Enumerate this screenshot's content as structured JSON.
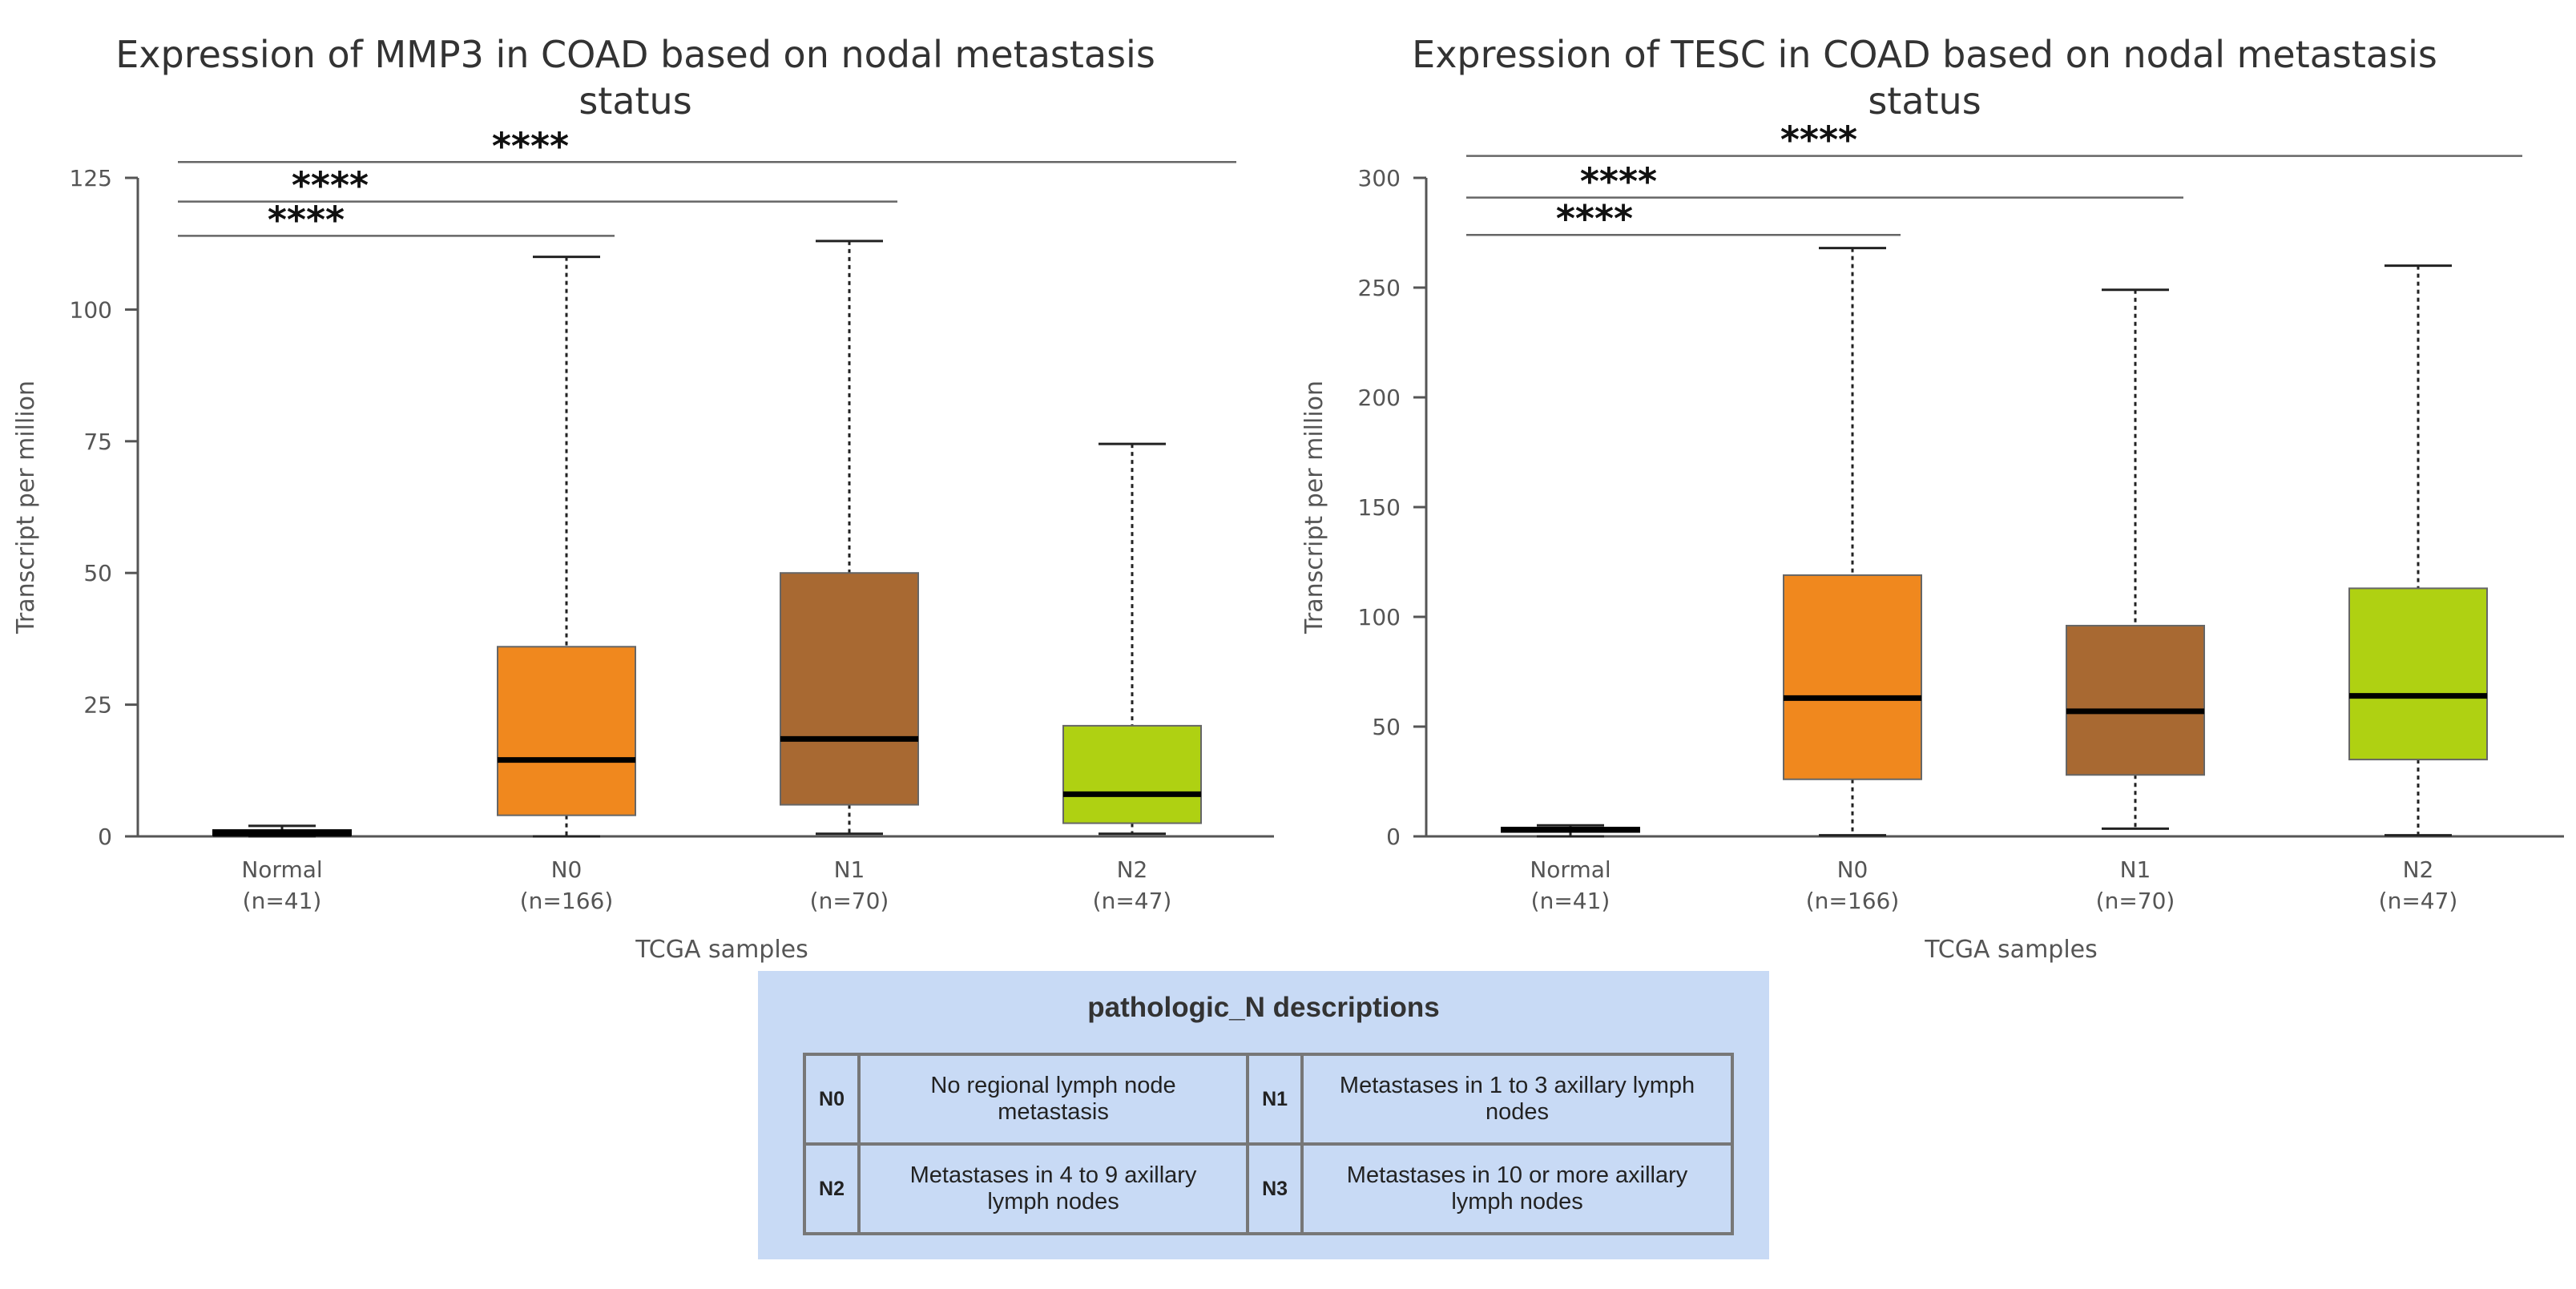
{
  "chart_data": [
    {
      "type": "box",
      "title": "Expression of MMP3 in COAD based on nodal metastasis status",
      "title_lines": [
        "Expression of MMP3 in COAD based on nodal metastasis",
        "status"
      ],
      "xlabel": "TCGA samples",
      "ylabel": "Transcript per million",
      "ylim": [
        0,
        125
      ],
      "yticks": [
        "0",
        "25",
        "50",
        "75",
        "100",
        "125"
      ],
      "ytick_values": [
        0,
        25,
        50,
        75,
        100,
        125
      ],
      "categories": [
        {
          "name": "Normal",
          "n": "(n=41)",
          "min": 0.0,
          "q1": 0.2,
          "median": 0.5,
          "q3": 1.2,
          "max": 2.0,
          "color": "#000000"
        },
        {
          "name": "N0",
          "n": "(n=166)",
          "min": 0.0,
          "q1": 4.0,
          "median": 14.5,
          "q3": 36.0,
          "max": 110.0,
          "color": "#f0881e"
        },
        {
          "name": "N1",
          "n": "(n=70)",
          "min": 0.5,
          "q1": 6.0,
          "median": 18.5,
          "q3": 50.0,
          "max": 113.0,
          "color": "#a86932"
        },
        {
          "name": "N2",
          "n": "(n=47)",
          "min": 0.5,
          "q1": 2.5,
          "median": 8.0,
          "q3": 21.0,
          "max": 74.5,
          "color": "#afd112"
        }
      ],
      "significance": [
        {
          "from": 0,
          "to": 1,
          "label": "****",
          "y": 114
        },
        {
          "from": 0,
          "to": 2,
          "label": "****",
          "y": 120.5
        },
        {
          "from": 0,
          "to": 3,
          "label": "****",
          "y": 128
        }
      ]
    },
    {
      "type": "box",
      "title": "Expression of TESC in COAD based on nodal metastasis status",
      "title_lines": [
        "Expression of TESC in COAD based on nodal metastasis",
        "status"
      ],
      "xlabel": "TCGA samples",
      "ylabel": "Transcript per million",
      "ylim": [
        0,
        300
      ],
      "yticks": [
        "0",
        "50",
        "100",
        "150",
        "200",
        "250",
        "300"
      ],
      "ytick_values": [
        0,
        50,
        100,
        150,
        200,
        250,
        300
      ],
      "categories": [
        {
          "name": "Normal",
          "n": "(n=41)",
          "min": 0.0,
          "q1": 2.0,
          "median": 3.0,
          "q3": 4.0,
          "max": 5.0,
          "color": "#000000"
        },
        {
          "name": "N0",
          "n": "(n=166)",
          "min": 0.5,
          "q1": 26.0,
          "median": 63.0,
          "q3": 119.0,
          "max": 268.0,
          "color": "#f0881e"
        },
        {
          "name": "N1",
          "n": "(n=70)",
          "min": 3.5,
          "q1": 28.0,
          "median": 57.0,
          "q3": 96.0,
          "max": 249.0,
          "color": "#a86932"
        },
        {
          "name": "N2",
          "n": "(n=47)",
          "min": 0.5,
          "q1": 35.0,
          "median": 64.0,
          "q3": 113.0,
          "max": 260.0,
          "color": "#afd112"
        }
      ],
      "significance": [
        {
          "from": 0,
          "to": 1,
          "label": "****",
          "y": 274
        },
        {
          "from": 0,
          "to": 2,
          "label": "****",
          "y": 291
        },
        {
          "from": 0,
          "to": 3,
          "label": "****",
          "y": 310
        }
      ]
    }
  ],
  "legend": {
    "title": "pathologic_N descriptions",
    "rows": [
      [
        {
          "code": "N0",
          "desc": "No regional lymph node metastasis"
        },
        {
          "code": "N1",
          "desc": "Metastases in 1 to 3 axillary lymph nodes"
        }
      ],
      [
        {
          "code": "N2",
          "desc": "Metastases in 4 to 9 axillary lymph nodes"
        },
        {
          "code": "N3",
          "desc": "Metastases in 10 or more axillary lymph nodes"
        }
      ]
    ]
  }
}
